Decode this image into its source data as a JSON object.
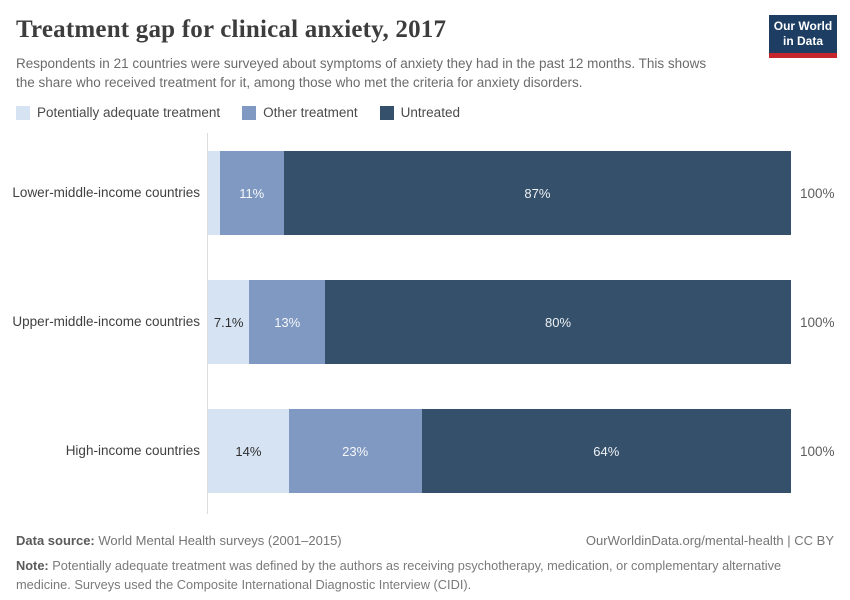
{
  "logo": {
    "line1": "Our World",
    "line2": "in Data",
    "bg_color": "#1d3d63",
    "accent_color": "#c5262c"
  },
  "chart_data": {
    "type": "bar",
    "orientation": "horizontal",
    "stacked": true,
    "title": "Treatment gap for clinical anxiety, 2017",
    "subtitle": "Respondents in 21 countries were surveyed about symptoms of anxiety they had in the past 12 months. This shows the share who received treatment for it, among those who met the criteria for anxiety disorders.",
    "categories": [
      "Lower-middle-income countries",
      "Upper-middle-income countries",
      "High-income countries"
    ],
    "series": [
      {
        "name": "Potentially adequate treatment",
        "color": "#d6e3f2",
        "values": [
          2,
          7.1,
          14
        ],
        "labels": [
          "",
          "7.1%",
          "14%"
        ]
      },
      {
        "name": "Other treatment",
        "color": "#8099c2",
        "values": [
          11,
          13,
          23
        ],
        "labels": [
          "11%",
          "13%",
          "23%"
        ]
      },
      {
        "name": "Untreated",
        "color": "#34506b",
        "values": [
          87,
          80,
          64
        ],
        "labels": [
          "87%",
          "80%",
          "64%"
        ]
      }
    ],
    "total_label": "100%",
    "xlim": [
      0,
      100
    ],
    "legend_position": "top",
    "grid": false,
    "axis_color": "#dcdcdc"
  },
  "footer": {
    "source_label": "Data source:",
    "source_text": " World Mental Health surveys (2001–2015)",
    "attribution": "OurWorldinData.org/mental-health | CC BY",
    "note_label": "Note:",
    "note_text": " Potentially adequate treatment was defined by the authors as receiving psychotherapy, medication, or complementary alternative medicine. Surveys used the Composite International Diagnostic Interview (CIDI)."
  }
}
